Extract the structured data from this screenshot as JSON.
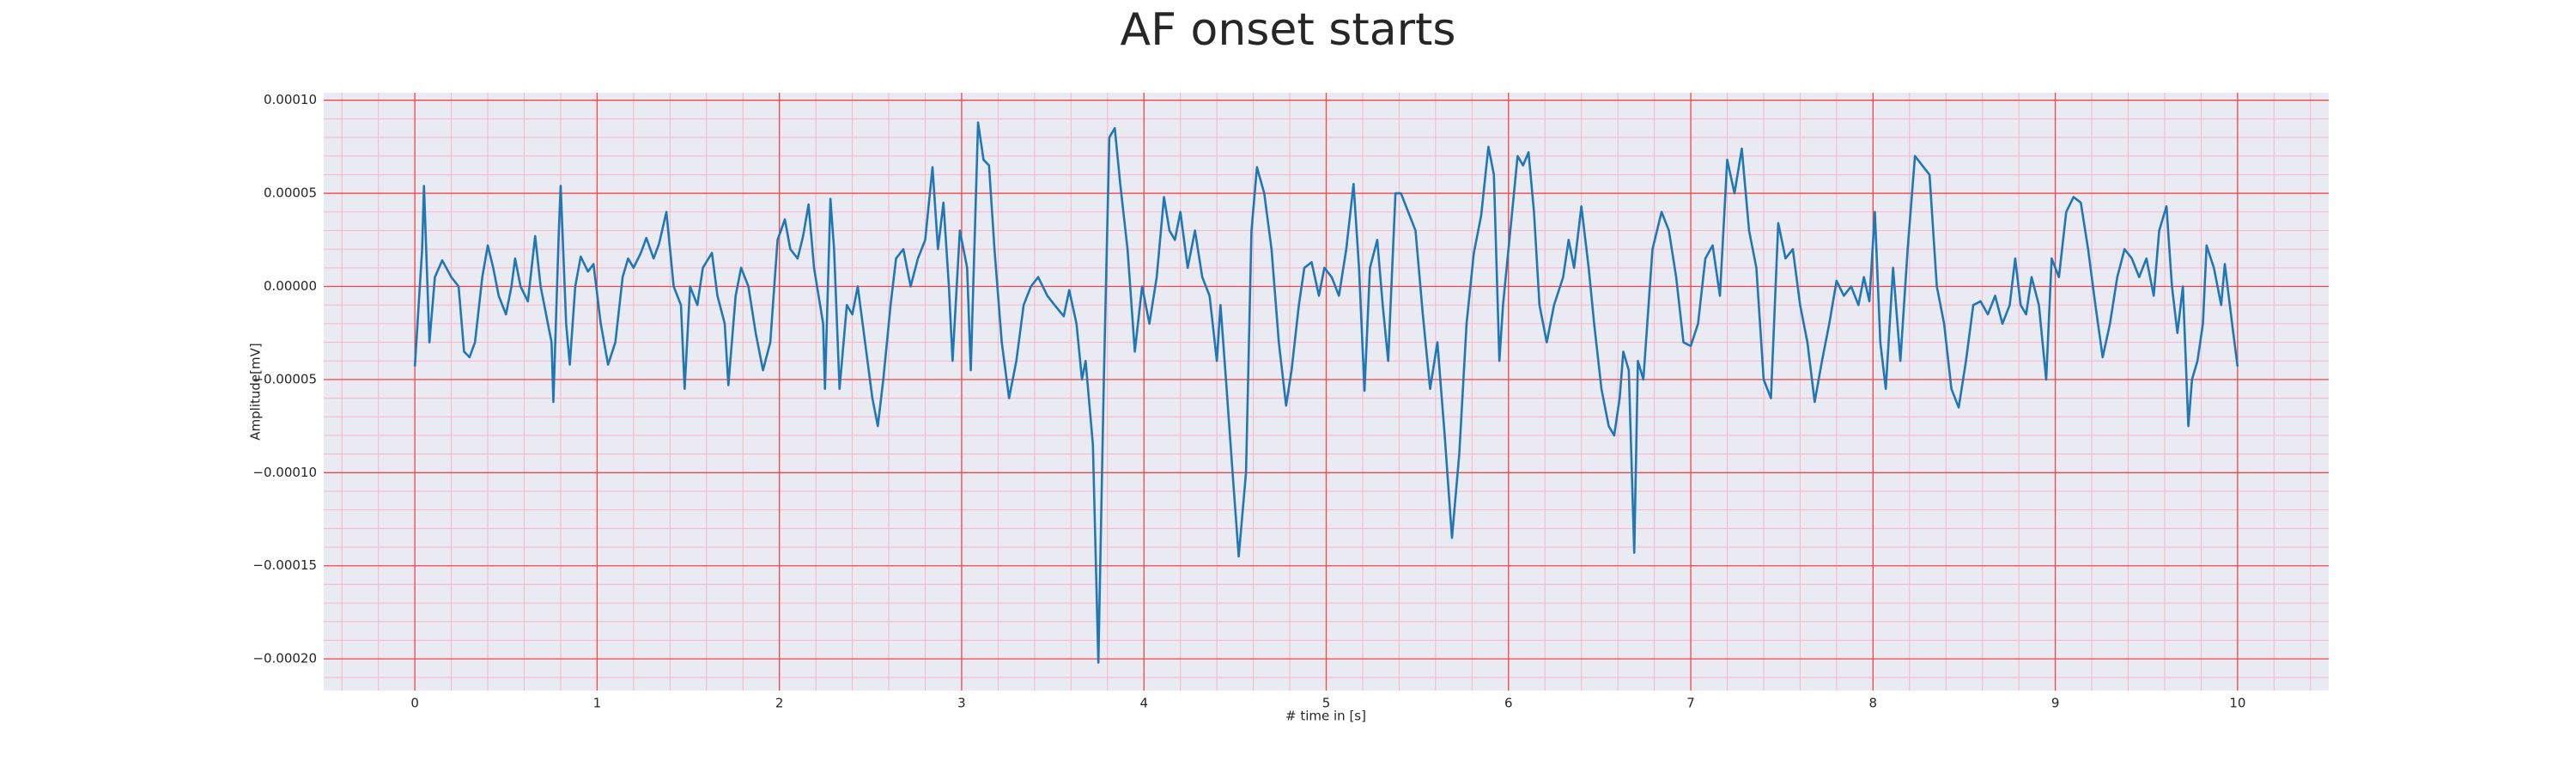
{
  "chart_data": {
    "type": "line",
    "title": "AF onset starts",
    "xlabel": "# time in [s]",
    "ylabel": "Amplitude[mV]",
    "color": "#1f77b4",
    "grid": true,
    "minor_grid": true,
    "xlim": [
      -0.5,
      10.5
    ],
    "ylim": [
      -0.000217,
      0.000104
    ],
    "xticks": [
      0,
      1,
      2,
      3,
      4,
      5,
      6,
      7,
      8,
      9,
      10
    ],
    "yticks": [
      {
        "value": 0.0001,
        "label": "0.00010"
      },
      {
        "value": 5e-05,
        "label": "0.00005"
      },
      {
        "value": 0,
        "label": "0.00000"
      },
      {
        "value": -5e-05,
        "label": "−0.00005"
      },
      {
        "value": -0.0001,
        "label": "−0.00010"
      },
      {
        "value": -0.00015,
        "label": "−0.00015"
      },
      {
        "value": -0.0002,
        "label": "−0.00020"
      }
    ],
    "x": [
      0.0,
      0.04,
      0.05,
      0.08,
      0.11,
      0.15,
      0.2,
      0.24,
      0.27,
      0.3,
      0.33,
      0.37,
      0.4,
      0.43,
      0.46,
      0.5,
      0.53,
      0.55,
      0.58,
      0.62,
      0.66,
      0.69,
      0.72,
      0.75,
      0.76,
      0.79,
      0.8,
      0.83,
      0.85,
      0.88,
      0.91,
      0.95,
      0.98,
      1.02,
      1.06,
      1.1,
      1.14,
      1.17,
      1.2,
      1.24,
      1.27,
      1.31,
      1.34,
      1.38,
      1.42,
      1.46,
      1.48,
      1.51,
      1.55,
      1.58,
      1.63,
      1.66,
      1.7,
      1.72,
      1.76,
      1.79,
      1.83,
      1.87,
      1.91,
      1.95,
      1.99,
      2.03,
      2.06,
      2.1,
      2.13,
      2.16,
      2.19,
      2.24,
      2.25,
      2.28,
      2.3,
      2.33,
      2.37,
      2.4,
      2.43,
      2.47,
      2.51,
      2.54,
      2.57,
      2.61,
      2.64,
      2.68,
      2.72,
      2.76,
      2.8,
      2.84,
      2.87,
      2.9,
      2.93,
      2.95,
      2.99,
      3.03,
      3.05,
      3.09,
      3.12,
      3.15,
      3.18,
      3.22,
      3.26,
      3.3,
      3.34,
      3.38,
      3.42,
      3.47,
      3.51,
      3.56,
      3.59,
      3.63,
      3.66,
      3.68,
      3.72,
      3.75,
      3.78,
      3.81,
      3.84,
      3.87,
      3.91,
      3.95,
      3.99,
      4.03,
      4.07,
      4.11,
      4.14,
      4.17,
      4.2,
      4.24,
      4.28,
      4.32,
      4.36,
      4.4,
      4.42,
      4.45,
      4.49,
      4.52,
      4.56,
      4.59,
      4.62,
      4.66,
      4.7,
      4.74,
      4.78,
      4.81,
      4.85,
      4.88,
      4.92,
      4.96,
      4.99,
      5.03,
      5.07,
      5.11,
      5.15,
      5.18,
      5.21,
      5.24,
      5.28,
      5.31,
      5.34,
      5.38,
      5.41,
      5.45,
      5.49,
      5.53,
      5.57,
      5.61,
      5.65,
      5.69,
      5.73,
      5.77,
      5.81,
      5.85,
      5.89,
      5.92,
      5.95,
      5.97,
      6.01,
      6.05,
      6.08,
      6.11,
      6.14,
      6.17,
      6.21,
      6.25,
      6.3,
      6.33,
      6.36,
      6.4,
      6.44,
      6.47,
      6.51,
      6.55,
      6.58,
      6.61,
      6.63,
      6.66,
      6.69,
      6.71,
      6.74,
      6.79,
      6.84,
      6.88,
      6.92,
      6.96,
      7.0,
      7.04,
      7.08,
      7.12,
      7.16,
      7.2,
      7.24,
      7.28,
      7.32,
      7.36,
      7.4,
      7.44,
      7.48,
      7.52,
      7.56,
      7.6,
      7.64,
      7.68,
      7.72,
      7.76,
      7.8,
      7.84,
      7.88,
      7.92,
      7.95,
      7.98,
      8.01,
      8.04,
      8.07,
      8.11,
      8.15,
      8.19,
      8.23,
      8.27,
      8.31,
      8.35,
      8.39,
      8.43,
      8.47,
      8.51,
      8.55,
      8.59,
      8.63,
      8.67,
      8.71,
      8.75,
      8.78,
      8.81,
      8.84,
      8.87,
      8.91,
      8.95,
      8.98,
      9.02,
      9.06,
      9.1,
      9.14,
      9.18,
      9.22,
      9.26,
      9.3,
      9.34,
      9.38,
      9.42,
      9.46,
      9.5,
      9.54,
      9.57,
      9.61,
      9.64,
      9.67,
      9.7,
      9.73,
      9.75,
      9.78,
      9.81,
      9.83,
      9.87,
      9.91,
      9.93,
      9.97,
      10.0
    ],
    "values": [
      -4.3e-05,
      2e-05,
      5.4e-05,
      -3e-05,
      5e-06,
      1.4e-05,
      5e-06,
      0,
      -3.5e-05,
      -3.8e-05,
      -3e-05,
      5e-06,
      2.2e-05,
      1e-05,
      -5e-06,
      -1.5e-05,
      0,
      1.5e-05,
      0,
      -8e-06,
      2.7e-05,
      0,
      -1.5e-05,
      -3e-05,
      -6.2e-05,
      3e-05,
      5.4e-05,
      -2e-05,
      -4.2e-05,
      0,
      1.6e-05,
      8e-06,
      1.2e-05,
      -2e-05,
      -4.2e-05,
      -3e-05,
      5e-06,
      1.5e-05,
      1e-05,
      1.8e-05,
      2.6e-05,
      1.5e-05,
      2.3e-05,
      4e-05,
      0,
      -1e-05,
      -5.5e-05,
      0,
      -1e-05,
      1e-05,
      1.8e-05,
      -5e-06,
      -2e-05,
      -5.3e-05,
      -5e-06,
      1e-05,
      0,
      -2.5e-05,
      -4.5e-05,
      -3e-05,
      2.5e-05,
      3.6e-05,
      2e-05,
      1.5e-05,
      2.7e-05,
      4.4e-05,
      1e-05,
      -2e-05,
      -5.5e-05,
      4.7e-05,
      2e-05,
      -5.5e-05,
      -1e-05,
      -1.5e-05,
      0,
      -3e-05,
      -6e-05,
      -7.5e-05,
      -5e-05,
      -1e-05,
      1.5e-05,
      2e-05,
      0,
      1.5e-05,
      2.5e-05,
      6.4e-05,
      2e-05,
      4.5e-05,
      0,
      -4e-05,
      3e-05,
      1e-05,
      -4.5e-05,
      8.8e-05,
      6.8e-05,
      6.5e-05,
      2e-05,
      -3e-05,
      -6e-05,
      -4e-05,
      -1e-05,
      0,
      5e-06,
      -5e-06,
      -1e-05,
      -1.6e-05,
      -2e-06,
      -2e-05,
      -5e-05,
      -4e-05,
      -8.5e-05,
      -0.000202,
      -5e-05,
      8e-05,
      8.5e-05,
      5.5e-05,
      2e-05,
      -3.5e-05,
      0,
      -2e-05,
      5e-06,
      4.8e-05,
      3e-05,
      2.5e-05,
      4e-05,
      1e-05,
      3e-05,
      5e-06,
      -5e-06,
      -4e-05,
      -1e-05,
      -5e-05,
      -0.000105,
      -0.000145,
      -0.0001,
      3e-05,
      6.4e-05,
      5e-05,
      2e-05,
      -3e-05,
      -6.4e-05,
      -4.5e-05,
      -1e-05,
      1e-05,
      1.3e-05,
      -5e-06,
      1e-05,
      5e-06,
      -5e-06,
      2e-05,
      5.5e-05,
      1e-05,
      -5.6e-05,
      1e-05,
      2.5e-05,
      -1e-05,
      -4e-05,
      5e-05,
      5e-05,
      4e-05,
      3e-05,
      -1.5e-05,
      -5.5e-05,
      -3e-05,
      -8e-05,
      -0.000135,
      -9e-05,
      -2e-05,
      1.8e-05,
      3.8e-05,
      7.5e-05,
      6e-05,
      -4e-05,
      -1e-05,
      3e-05,
      7e-05,
      6.5e-05,
      7.2e-05,
      4e-05,
      -1e-05,
      -3e-05,
      -1e-05,
      5e-06,
      2.5e-05,
      1e-05,
      4.3e-05,
      1e-05,
      -2e-05,
      -5.5e-05,
      -7.5e-05,
      -8e-05,
      -6e-05,
      -3.5e-05,
      -4.5e-05,
      -0.000143,
      -4e-05,
      -5e-05,
      2e-05,
      4e-05,
      3e-05,
      5e-06,
      -3e-05,
      -3.2e-05,
      -2e-05,
      1.5e-05,
      2.2e-05,
      -5e-06,
      6.8e-05,
      5e-05,
      7.4e-05,
      3e-05,
      1e-05,
      -5e-05,
      -6e-05,
      3.4e-05,
      1.5e-05,
      2e-05,
      -1e-05,
      -3e-05,
      -6.2e-05,
      -4e-05,
      -2e-05,
      3e-06,
      -5e-06,
      0,
      -1e-05,
      5e-06,
      -8e-06,
      4e-05,
      -3e-05,
      -5.5e-05,
      1e-05,
      -4e-05,
      2e-05,
      7e-05,
      6.5e-05,
      6e-05,
      0,
      -2e-05,
      -5.5e-05,
      -6.5e-05,
      -4e-05,
      -1e-05,
      -8e-06,
      -1.5e-05,
      -5e-06,
      -2e-05,
      -1e-05,
      1.5e-05,
      -1e-05,
      -1.5e-05,
      5e-06,
      -1e-05,
      -5e-05,
      1.5e-05,
      5e-06,
      4e-05,
      4.8e-05,
      4.5e-05,
      2e-05,
      -1e-05,
      -3.8e-05,
      -2e-05,
      5e-06,
      2e-05,
      1.5e-05,
      5e-06,
      1.5e-05,
      -5e-06,
      3e-05,
      4.3e-05,
      0,
      -2.5e-05,
      0,
      -7.5e-05,
      -5e-05,
      -4e-05,
      -2e-05,
      2.2e-05,
      1e-05,
      -1e-05,
      1.2e-05,
      -2e-05,
      -4.3e-05
    ]
  }
}
